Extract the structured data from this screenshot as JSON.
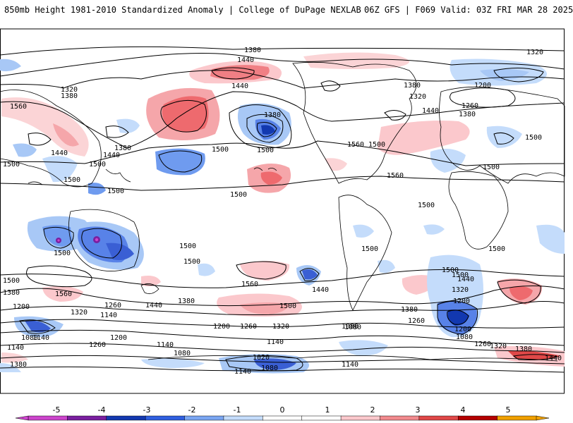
{
  "header": {
    "left_title": "850mb Height 1981-2010 Standardized Anomaly | College of DuPage NEXLAB",
    "right_title": "06Z GFS | F069 Valid: 03Z FRI MAR 28 2025"
  },
  "contour_labels": [
    {
      "id": "c1",
      "text": "1380"
    },
    {
      "id": "c2",
      "text": "1440"
    },
    {
      "id": "c3",
      "text": "1320"
    },
    {
      "id": "c4",
      "text": "1320"
    },
    {
      "id": "c5",
      "text": "1380"
    },
    {
      "id": "c6",
      "text": "1560"
    },
    {
      "id": "c7",
      "text": "1440"
    },
    {
      "id": "c8",
      "text": "1380"
    },
    {
      "id": "c9",
      "text": "1500"
    },
    {
      "id": "c10",
      "text": "1500"
    },
    {
      "id": "c11",
      "text": "1500"
    },
    {
      "id": "c12",
      "text": "1440"
    },
    {
      "id": "c13",
      "text": "1380"
    },
    {
      "id": "c14",
      "text": "1500"
    },
    {
      "id": "c15",
      "text": "1440"
    },
    {
      "id": "c16",
      "text": "1500"
    },
    {
      "id": "c17",
      "text": "1560"
    },
    {
      "id": "c18",
      "text": "1560"
    },
    {
      "id": "c19",
      "text": "1500"
    },
    {
      "id": "c20",
      "text": "1380"
    },
    {
      "id": "c21",
      "text": "1320"
    },
    {
      "id": "c22",
      "text": "1200"
    },
    {
      "id": "c23",
      "text": "1260"
    },
    {
      "id": "c24",
      "text": "1380"
    },
    {
      "id": "c25",
      "text": "1440"
    },
    {
      "id": "c26",
      "text": "1500"
    },
    {
      "id": "c27",
      "text": "1500"
    },
    {
      "id": "c28",
      "text": "1500"
    },
    {
      "id": "c29",
      "text": "1500"
    },
    {
      "id": "c30",
      "text": "1500"
    },
    {
      "id": "c31",
      "text": "1500"
    },
    {
      "id": "c32",
      "text": "1500"
    },
    {
      "id": "c33",
      "text": "1500"
    },
    {
      "id": "c34",
      "text": "1500"
    },
    {
      "id": "c35",
      "text": "1500"
    },
    {
      "id": "c36",
      "text": "1560"
    },
    {
      "id": "c37",
      "text": "1500"
    },
    {
      "id": "c38",
      "text": "1440"
    },
    {
      "id": "c39",
      "text": "1500"
    },
    {
      "id": "c40",
      "text": "1500"
    },
    {
      "id": "c41",
      "text": "1380"
    },
    {
      "id": "c42",
      "text": "1560"
    },
    {
      "id": "c43",
      "text": "1320"
    },
    {
      "id": "c44",
      "text": "1200"
    },
    {
      "id": "c45",
      "text": "1260"
    },
    {
      "id": "c46",
      "text": "1140"
    },
    {
      "id": "c47",
      "text": "1440"
    },
    {
      "id": "c48",
      "text": "1380"
    },
    {
      "id": "c49",
      "text": "1500"
    },
    {
      "id": "c50",
      "text": "1440"
    },
    {
      "id": "c51",
      "text": "1380"
    },
    {
      "id": "c52",
      "text": "1260"
    },
    {
      "id": "c53",
      "text": "1320"
    },
    {
      "id": "c54",
      "text": "1200"
    },
    {
      "id": "c55",
      "text": "1260"
    },
    {
      "id": "c56",
      "text": "1320"
    },
    {
      "id": "c57",
      "text": "1080"
    },
    {
      "id": "c58",
      "text": "1140"
    },
    {
      "id": "c59",
      "text": "1200"
    },
    {
      "id": "c60",
      "text": "1260"
    },
    {
      "id": "c61",
      "text": "1140"
    },
    {
      "id": "c62",
      "text": "1080"
    },
    {
      "id": "c63",
      "text": "1200"
    },
    {
      "id": "c64",
      "text": "1140"
    },
    {
      "id": "c65",
      "text": "1020"
    },
    {
      "id": "c66",
      "text": "1080"
    },
    {
      "id": "c67",
      "text": "1140"
    },
    {
      "id": "c68",
      "text": "1140"
    },
    {
      "id": "c69",
      "text": "1080"
    },
    {
      "id": "c70",
      "text": "1380"
    },
    {
      "id": "c71",
      "text": "1200"
    },
    {
      "id": "c72",
      "text": "1080"
    },
    {
      "id": "c73",
      "text": "1260"
    },
    {
      "id": "c74",
      "text": "1320"
    },
    {
      "id": "c75",
      "text": "1380"
    },
    {
      "id": "c76",
      "text": "1440"
    },
    {
      "id": "c77",
      "text": "1140"
    },
    {
      "id": "c78",
      "text": "1080"
    }
  ],
  "colorbar": {
    "ticks": [
      "-5",
      "-4",
      "-3",
      "-2",
      "-1",
      "0",
      "1",
      "2",
      "3",
      "4",
      "5"
    ],
    "colors": [
      "#cc44cc",
      "#7a1fa0",
      "#1238b0",
      "#2f5fe0",
      "#7aa6f2",
      "#c4dcfb",
      "#ffffff",
      "#ffffff",
      "#fbc8cc",
      "#f28a8e",
      "#e04848",
      "#b40000",
      "#f0a000"
    ]
  }
}
